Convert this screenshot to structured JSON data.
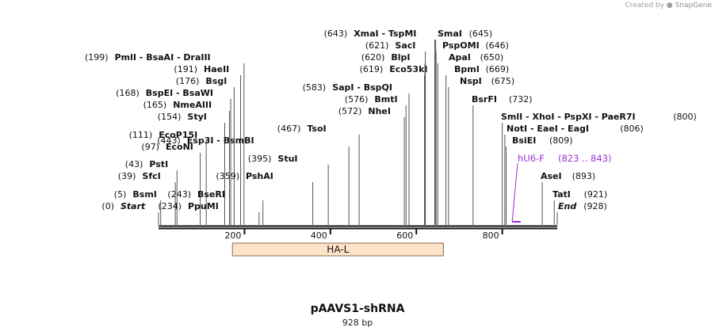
{
  "credit": {
    "prefix": "Created by",
    "brand": "SnapGene"
  },
  "plasmid": {
    "name": "pAAVS1-shRNA",
    "length_label": "928 bp",
    "length": 928
  },
  "ruler": {
    "ticks": [
      200,
      400,
      600,
      800
    ]
  },
  "colors": {
    "line": "#111111",
    "text": "#111111",
    "leader": "#555555",
    "primer": "#9b30d9",
    "feature_fill": "#fde3c8",
    "feature_stroke": "#8a6a4a"
  },
  "features": [
    {
      "name": "HA-L",
      "start": 172,
      "end": 663
    }
  ],
  "primers": [
    {
      "name": "hU6-F",
      "range": "(823 .. 843)",
      "start": 823,
      "end": 843
    }
  ],
  "sites": [
    {
      "name": "Start",
      "pos": 0,
      "pos_label": "(0)",
      "italic": true
    },
    {
      "name": "BsmI",
      "pos": 5,
      "pos_label": "(5)"
    },
    {
      "name": "SfcI",
      "pos": 39,
      "pos_label": "(39)"
    },
    {
      "name": "PstI",
      "pos": 43,
      "pos_label": "(43)"
    },
    {
      "name": "EcoNI",
      "pos": 97,
      "pos_label": "(97)"
    },
    {
      "name": "EcoP15I",
      "pos": 111,
      "pos_label": "(111)"
    },
    {
      "name": "StyI",
      "pos": 154,
      "pos_label": "(154)"
    },
    {
      "name": "NmeAIII",
      "pos": 165,
      "pos_label": "(165)"
    },
    {
      "name": "BspEI - BsaWI",
      "pos": 168,
      "pos_label": "(168)"
    },
    {
      "name": "BsgI",
      "pos": 176,
      "pos_label": "(176)"
    },
    {
      "name": "HaeII",
      "pos": 191,
      "pos_label": "(191)"
    },
    {
      "name": "PmlI - BsaAI - DraIII",
      "pos": 199,
      "pos_label": "(199)"
    },
    {
      "name": "PpuMI",
      "pos": 234,
      "pos_label": "(234)"
    },
    {
      "name": "BseRI",
      "pos": 243,
      "pos_label": "(243)"
    },
    {
      "name": "PshAI",
      "pos": 359,
      "pos_label": "(359)"
    },
    {
      "name": "StuI",
      "pos": 395,
      "pos_label": "(395)"
    },
    {
      "name": "Esp3I - BsmBI",
      "pos": 443,
      "pos_label": "(443)"
    },
    {
      "name": "TsoI",
      "pos": 467,
      "pos_label": "(467)"
    },
    {
      "name": "NheI",
      "pos": 572,
      "pos_label": "(572)"
    },
    {
      "name": "BmtI",
      "pos": 576,
      "pos_label": "(576)"
    },
    {
      "name": "SapI - BspQI",
      "pos": 583,
      "pos_label": "(583)"
    },
    {
      "name": "Eco53kI",
      "pos": 619,
      "pos_label": "(619)"
    },
    {
      "name": "BlpI",
      "pos": 620,
      "pos_label": "(620)"
    },
    {
      "name": "SacI",
      "pos": 621,
      "pos_label": "(621)"
    },
    {
      "name": "XmaI - TspMI",
      "pos": 643,
      "pos_label": "(643)"
    },
    {
      "name": "SmaI",
      "pos": 645,
      "pos_label": "(645)"
    },
    {
      "name": "PspOMI",
      "pos": 646,
      "pos_label": "(646)"
    },
    {
      "name": "ApaI",
      "pos": 650,
      "pos_label": "(650)"
    },
    {
      "name": "BpmI",
      "pos": 669,
      "pos_label": "(669)"
    },
    {
      "name": "NspI",
      "pos": 675,
      "pos_label": "(675)"
    },
    {
      "name": "BsrFI",
      "pos": 732,
      "pos_label": "(732)"
    },
    {
      "name": "SmlI - XhoI - PspXI - PaeR7I",
      "pos": 800,
      "pos_label": "(800)"
    },
    {
      "name": "NotI - EaeI - EagI",
      "pos": 806,
      "pos_label": "(806)"
    },
    {
      "name": "BsiEI",
      "pos": 809,
      "pos_label": "(809)"
    },
    {
      "name": "AseI",
      "pos": 893,
      "pos_label": "(893)"
    },
    {
      "name": "TatI",
      "pos": 921,
      "pos_label": "(921)"
    },
    {
      "name": "End",
      "pos": 928,
      "pos_label": "(928)",
      "italic": true
    }
  ]
}
